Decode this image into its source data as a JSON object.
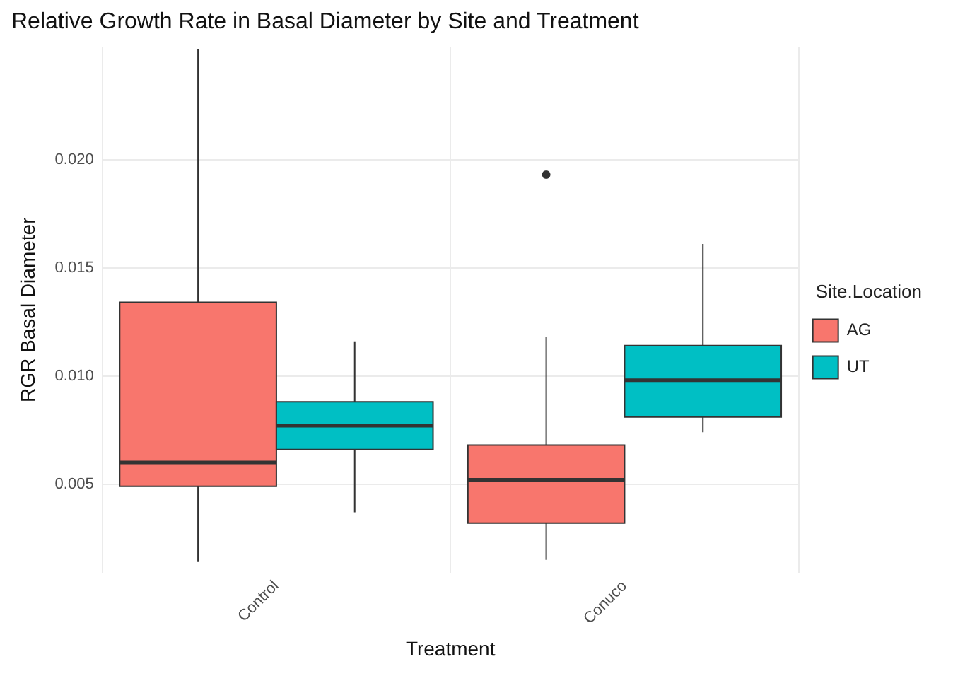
{
  "chart_data": {
    "type": "box",
    "title": "Relative Growth Rate in Basal Diameter by Site and Treatment",
    "xlabel": "Treatment",
    "ylabel": "RGR Basal Diameter",
    "legend_title": "Site.Location",
    "legend": "right",
    "grid": true,
    "categories": [
      "Control",
      "Conuco"
    ],
    "ylim": [
      0.0009,
      0.0252
    ],
    "yticks": [
      {
        "value": 0.005,
        "label": "0.005"
      },
      {
        "value": 0.01,
        "label": "0.010"
      },
      {
        "value": 0.015,
        "label": "0.015"
      },
      {
        "value": 0.02,
        "label": "0.020"
      }
    ],
    "series": [
      {
        "name": "AG",
        "color": "#f8766d",
        "boxes": [
          {
            "low": 0.0014,
            "q1": 0.0049,
            "median": 0.006,
            "q3": 0.0134,
            "high": 0.0251
          },
          {
            "low": 0.0015,
            "q1": 0.0032,
            "median": 0.0052,
            "q3": 0.0068,
            "high": 0.0118,
            "outliers": [
              0.0193
            ]
          }
        ]
      },
      {
        "name": "UT",
        "color": "#00bfc4",
        "boxes": [
          {
            "low": 0.0037,
            "q1": 0.0066,
            "median": 0.0077,
            "q3": 0.0088,
            "high": 0.0116
          },
          {
            "low": 0.0074,
            "q1": 0.0081,
            "median": 0.0098,
            "q3": 0.0114,
            "high": 0.0161
          }
        ]
      }
    ]
  }
}
